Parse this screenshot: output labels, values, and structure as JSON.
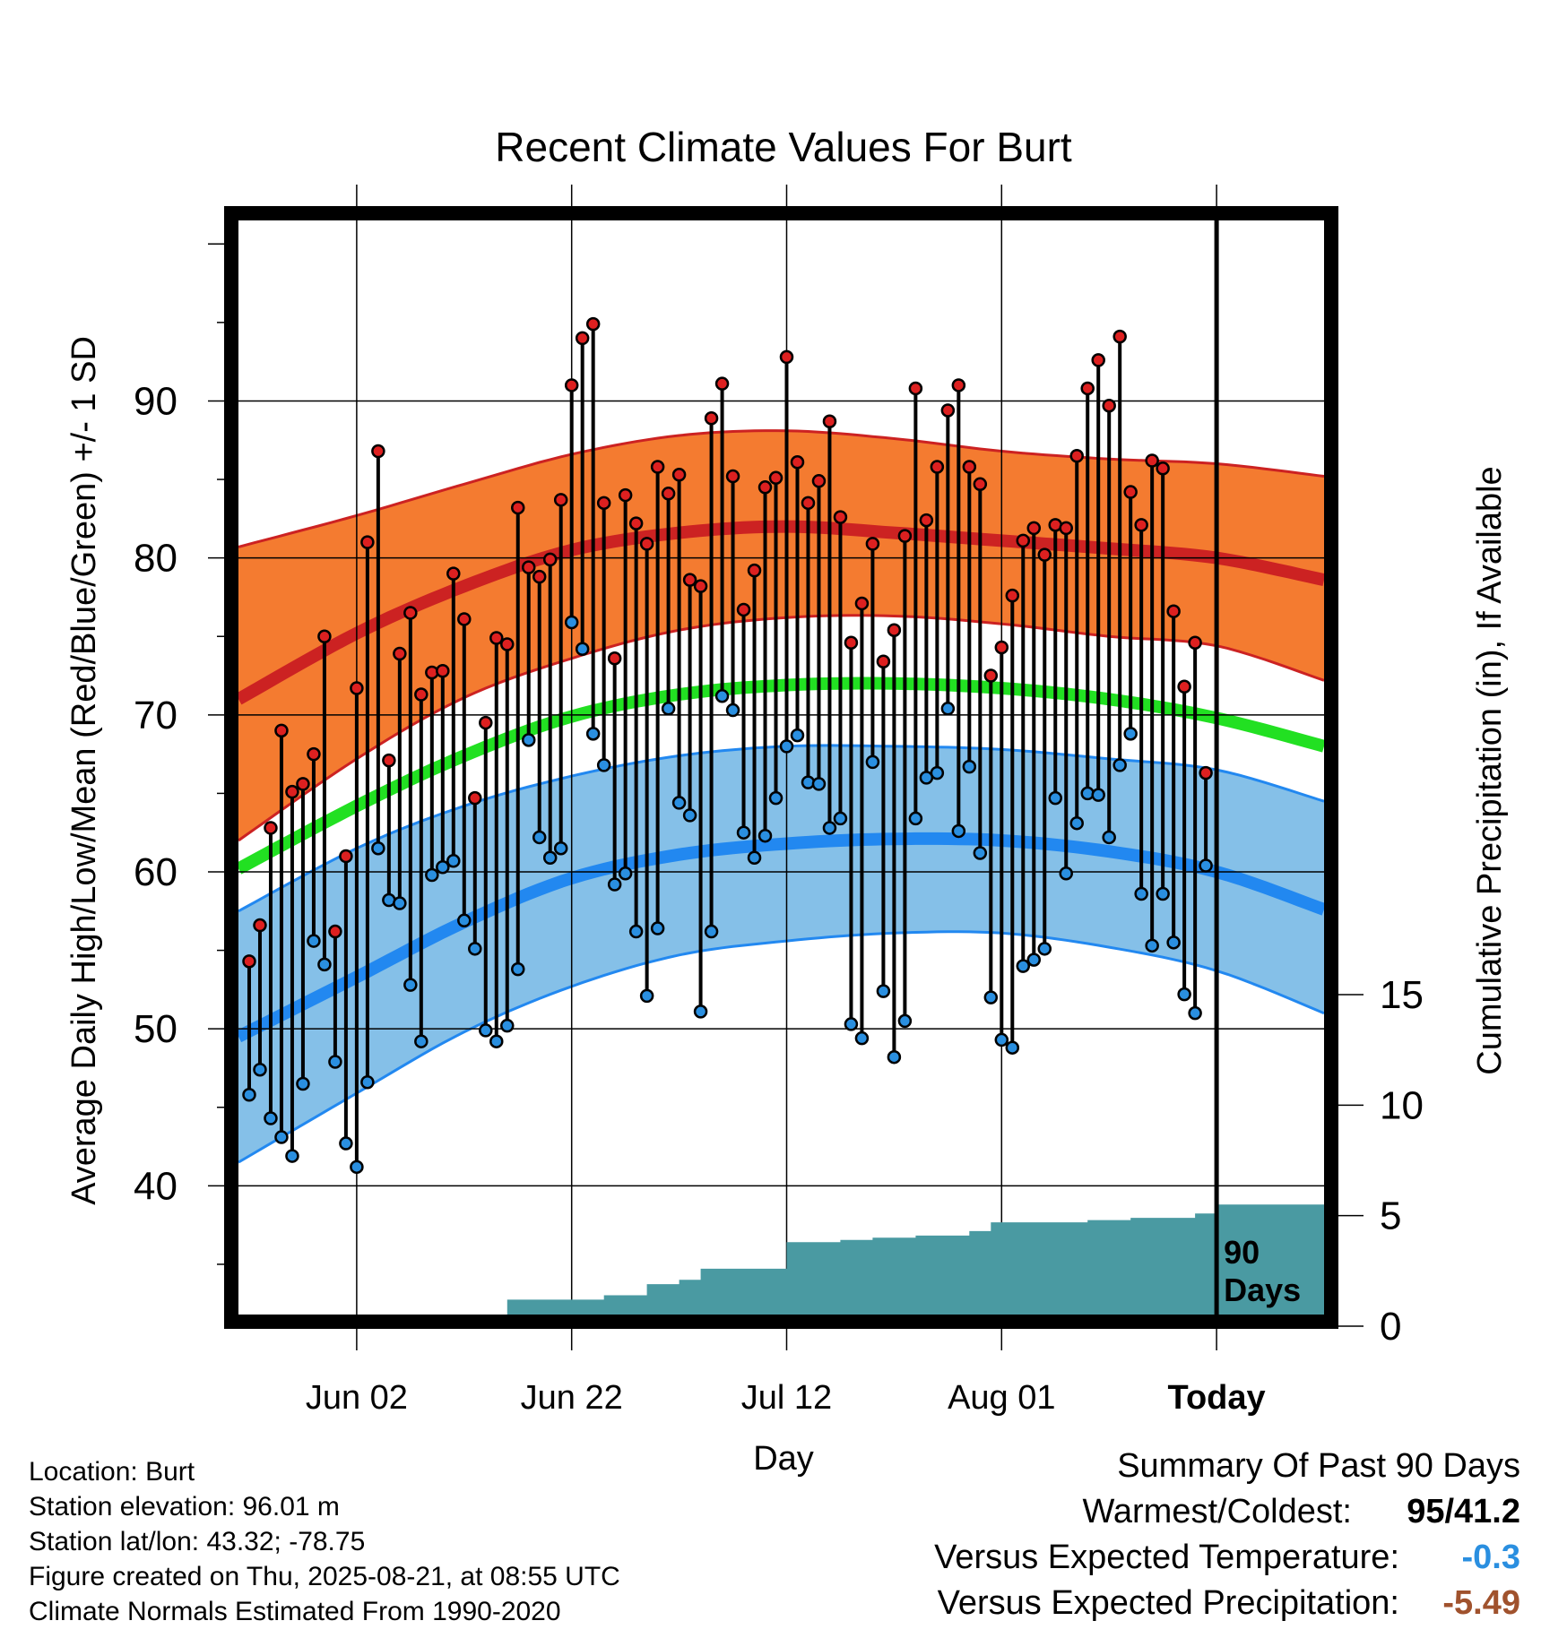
{
  "chart_data": {
    "type": "line",
    "title": "Recent Climate Values For Burt",
    "xlabel": "Day",
    "ylabel": "Average Daily High/Low/Mean (Red/Blue/Green) +/- 1 SD",
    "y2label": "Cumulative Precipitation (in), If Available",
    "x_tick_labels": [
      "Jun 02",
      "Jun 22",
      "Jul 12",
      "Aug 01",
      "Today"
    ],
    "x_tick_days": [
      10,
      30,
      50,
      70,
      90
    ],
    "y_ticks": [
      40,
      50,
      60,
      70,
      80,
      90
    ],
    "y2_ticks": [
      0,
      5,
      10,
      15
    ],
    "ylim": [
      31.8,
      101.5
    ],
    "xlim": [
      -1,
      100
    ],
    "annotation": "90 Days",
    "series": [
      {
        "name": "Normal High",
        "color": "#cc2222",
        "x": [
          -1,
          10,
          20,
          30,
          40,
          50,
          60,
          70,
          80,
          90,
          100
        ],
        "mean": [
          71,
          75.2,
          78.2,
          80.5,
          81.6,
          82,
          81.6,
          81.1,
          80.6,
          80,
          78.6
        ],
        "upper": [
          80.7,
          82.7,
          84.7,
          86.6,
          87.8,
          88.1,
          87.6,
          86.8,
          86.3,
          86,
          85.2
        ],
        "lower": [
          62,
          67.2,
          71.1,
          73.6,
          75.4,
          76.2,
          76.3,
          75.8,
          75,
          74.4,
          72.2
        ]
      },
      {
        "name": "Normal Low",
        "color": "#2288dd",
        "x": [
          -1,
          10,
          20,
          30,
          40,
          50,
          60,
          70,
          80,
          90,
          100
        ],
        "mean": [
          49.5,
          53.3,
          56.8,
          59.6,
          61.1,
          61.8,
          62.1,
          62,
          61.3,
          60,
          57.6
        ],
        "upper": [
          57.5,
          61.5,
          64.2,
          66.1,
          67.4,
          68,
          68,
          67.8,
          67.2,
          66.5,
          64.5
        ],
        "lower": [
          41.5,
          45.9,
          49.8,
          52.7,
          54.7,
          55.6,
          56.1,
          56.1,
          55.2,
          53.7,
          51
        ]
      },
      {
        "name": "Normal Mean",
        "color": "#22dd22",
        "x": [
          -1,
          10,
          20,
          30,
          40,
          50,
          60,
          70,
          80,
          90,
          100
        ],
        "values": [
          60.2,
          64.2,
          67.4,
          69.9,
          71.3,
          71.9,
          72,
          71.7,
          71,
          69.8,
          68
        ]
      }
    ],
    "daily": {
      "start_x": 0,
      "high": [
        54.3,
        56.6,
        62.8,
        69,
        65.1,
        65.6,
        67.5,
        75,
        56.2,
        61,
        71.7,
        81,
        86.8,
        67.1,
        73.9,
        76.5,
        71.3,
        72.7,
        72.8,
        79,
        76.1,
        64.7,
        69.5,
        74.9,
        74.5,
        83.2,
        79.4,
        78.8,
        79.9,
        83.7,
        91,
        94,
        94.9,
        83.5,
        73.6,
        84,
        82.2,
        80.9,
        85.8,
        84.1,
        85.3,
        78.6,
        78.2,
        88.9,
        91.1,
        85.2,
        76.7,
        79.2,
        84.5,
        85.1,
        92.8,
        86.1,
        83.5,
        84.9,
        88.7,
        82.6,
        74.6,
        77.1,
        80.9,
        73.4,
        75.4,
        81.4,
        90.8,
        82.4,
        85.8,
        89.4,
        91,
        85.8,
        84.7,
        72.5,
        74.3,
        77.6,
        81.1,
        81.9,
        80.2,
        82.1,
        81.9,
        86.5,
        90.8,
        92.6,
        89.7,
        94.1,
        84.2,
        82.1,
        86.2,
        85.7,
        76.6,
        71.8,
        74.6,
        66.3
      ],
      "low": [
        45.8,
        47.4,
        44.3,
        43.1,
        41.9,
        46.5,
        55.6,
        54.1,
        47.9,
        42.7,
        41.2,
        46.6,
        61.5,
        58.2,
        58,
        52.8,
        49.2,
        59.8,
        60.3,
        60.7,
        56.9,
        55.1,
        49.9,
        49.2,
        50.2,
        53.8,
        68.4,
        62.2,
        60.9,
        61.5,
        75.9,
        74.2,
        68.8,
        66.8,
        59.2,
        59.9,
        56.2,
        52.1,
        56.4,
        70.4,
        64.4,
        63.6,
        51.1,
        56.2,
        71.2,
        70.3,
        62.5,
        60.9,
        62.3,
        64.7,
        68,
        68.7,
        65.7,
        65.6,
        62.8,
        63.4,
        50.3,
        49.4,
        67,
        52.4,
        48.2,
        50.5,
        63.4,
        66,
        66.3,
        70.4,
        62.6,
        66.7,
        61.2,
        52,
        49.3,
        48.8,
        54,
        54.4,
        55.1,
        64.7,
        59.9,
        63.1,
        65,
        64.9,
        62.2,
        66.8,
        68.8,
        58.6,
        55.3,
        58.6,
        55.5,
        52.2,
        51,
        60.4
      ]
    },
    "precip_cumulative": {
      "x": [
        -1,
        15,
        15,
        24,
        24,
        33,
        33,
        37,
        37,
        40,
        40,
        42,
        42,
        50,
        50,
        55,
        55,
        58,
        58,
        62,
        62,
        67,
        67,
        69,
        69,
        78,
        78,
        82,
        82,
        88,
        88,
        90,
        90,
        100
      ],
      "values": [
        0,
        0,
        0.3,
        0.3,
        1.2,
        1.2,
        1.4,
        1.4,
        1.9,
        1.9,
        2.1,
        2.1,
        2.6,
        2.6,
        3.8,
        3.8,
        3.9,
        3.9,
        4,
        4,
        4.1,
        4.1,
        4.3,
        4.3,
        4.7,
        4.7,
        4.8,
        4.8,
        4.9,
        4.9,
        5.1,
        5.1,
        5.5,
        5.5
      ]
    }
  },
  "info": {
    "location": "Location: Burt",
    "elevation": "Station elevation: 96.01 m",
    "latlon": "Station lat/lon: 43.32; -78.75",
    "created": "Figure created on Thu, 2025-08-21, at 08:55 UTC",
    "normals": "Climate Normals Estimated From 1990-2020"
  },
  "summary": {
    "heading": "Summary Of Past 90 Days",
    "warm_cold_label": "Warmest/Coldest:",
    "warmest": "95",
    "coldest": "/41.2",
    "temp_label": "Versus Expected Temperature:",
    "temp_value": "-0.3",
    "precip_label": "Versus Expected Precipitation:",
    "precip_value": "-5.49",
    "colors": {
      "temp": "#2a8fe0",
      "precip": "#a0522d"
    }
  }
}
